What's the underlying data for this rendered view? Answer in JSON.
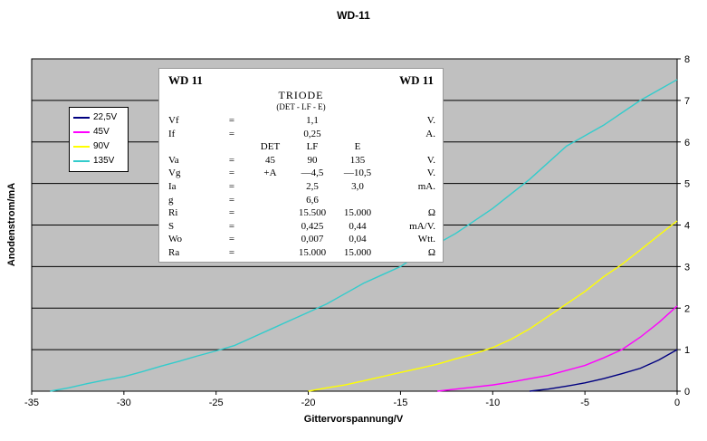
{
  "page": {
    "title": "WD-11"
  },
  "axes": {
    "x_label": "Gittervorspannung/V",
    "y_label": "Anodenstrom/mA",
    "x_ticks": [
      -35,
      -30,
      -25,
      -20,
      -15,
      -10,
      -5,
      0
    ],
    "y_ticks": [
      0,
      1,
      2,
      3,
      4,
      5,
      6,
      7,
      8
    ]
  },
  "colors": {
    "plot_bg": "#c0c0c0",
    "grid": "#000000",
    "axis": "#000000"
  },
  "legend": {
    "items": [
      {
        "label": "22,5V",
        "color": "#000080"
      },
      {
        "label": "45V",
        "color": "#ff00ff"
      },
      {
        "label": "90V",
        "color": "#ffff00"
      },
      {
        "label": "135V",
        "color": "#33cccc"
      }
    ]
  },
  "chart_data": {
    "type": "line",
    "title": "WD-11",
    "xlabel": "Gittervorspannung/V",
    "ylabel": "Anodenstrom/mA",
    "xlim": [
      -35,
      0
    ],
    "ylim": [
      0,
      8
    ],
    "grid": "horizontal",
    "legend_position": "upper-left-inside",
    "series": [
      {
        "name": "22,5V",
        "color": "#000080",
        "points": [
          [
            -8,
            0
          ],
          [
            -7,
            0.05
          ],
          [
            -6,
            0.12
          ],
          [
            -5,
            0.2
          ],
          [
            -4,
            0.3
          ],
          [
            -3,
            0.42
          ],
          [
            -2,
            0.55
          ],
          [
            -1,
            0.75
          ],
          [
            0,
            1.0
          ]
        ]
      },
      {
        "name": "45V",
        "color": "#ff00ff",
        "points": [
          [
            -13,
            0
          ],
          [
            -12,
            0.05
          ],
          [
            -11,
            0.1
          ],
          [
            -10,
            0.15
          ],
          [
            -9,
            0.22
          ],
          [
            -8,
            0.3
          ],
          [
            -7,
            0.38
          ],
          [
            -6,
            0.5
          ],
          [
            -5,
            0.62
          ],
          [
            -4,
            0.8
          ],
          [
            -3,
            1.0
          ],
          [
            -2,
            1.3
          ],
          [
            -1,
            1.65
          ],
          [
            0,
            2.05
          ]
        ]
      },
      {
        "name": "90V",
        "color": "#ffff00",
        "points": [
          [
            -20,
            0
          ],
          [
            -19,
            0.08
          ],
          [
            -18,
            0.15
          ],
          [
            -17,
            0.25
          ],
          [
            -16,
            0.35
          ],
          [
            -15,
            0.45
          ],
          [
            -14,
            0.55
          ],
          [
            -13,
            0.65
          ],
          [
            -12,
            0.78
          ],
          [
            -11,
            0.9
          ],
          [
            -10,
            1.05
          ],
          [
            -9,
            1.25
          ],
          [
            -8,
            1.5
          ],
          [
            -7,
            1.8
          ],
          [
            -6,
            2.1
          ],
          [
            -5,
            2.4
          ],
          [
            -4,
            2.75
          ],
          [
            -3,
            3.05
          ],
          [
            -2,
            3.4
          ],
          [
            -1,
            3.75
          ],
          [
            0,
            4.1
          ]
        ]
      },
      {
        "name": "135V",
        "color": "#33cccc",
        "points": [
          [
            -34,
            0
          ],
          [
            -33,
            0.08
          ],
          [
            -32,
            0.18
          ],
          [
            -31,
            0.27
          ],
          [
            -30,
            0.35
          ],
          [
            -29,
            0.47
          ],
          [
            -28,
            0.6
          ],
          [
            -27,
            0.72
          ],
          [
            -26,
            0.85
          ],
          [
            -25,
            0.97
          ],
          [
            -24,
            1.1
          ],
          [
            -23,
            1.3
          ],
          [
            -22,
            1.5
          ],
          [
            -21,
            1.7
          ],
          [
            -20,
            1.9
          ],
          [
            -19.5,
            2.0
          ],
          [
            -19,
            2.1
          ],
          [
            -18,
            2.35
          ],
          [
            -17,
            2.6
          ],
          [
            -16,
            2.8
          ],
          [
            -15,
            3.0
          ],
          [
            -14,
            3.3
          ],
          [
            -13,
            3.55
          ],
          [
            -12,
            3.8
          ],
          [
            -11,
            4.1
          ],
          [
            -10,
            4.4
          ],
          [
            -9,
            4.75
          ],
          [
            -8,
            5.1
          ],
          [
            -7,
            5.5
          ],
          [
            -6,
            5.9
          ],
          [
            -5,
            6.15
          ],
          [
            -4,
            6.4
          ],
          [
            -3,
            6.7
          ],
          [
            -2,
            7.0
          ],
          [
            -1,
            7.25
          ],
          [
            0,
            7.5
          ]
        ]
      }
    ]
  },
  "datasheet": {
    "title_left": "WD 11",
    "title_right": "WD 11",
    "heading": "TRIODE",
    "subheading": "(DET - LF - E)",
    "rows": [
      {
        "name": "Vf",
        "eq": "=",
        "det": "",
        "lf": "1,1",
        "e": "",
        "unit": "V.",
        "header": false
      },
      {
        "name": "If",
        "eq": "=",
        "det": "",
        "lf": "0,25",
        "e": "",
        "unit": "A.",
        "header": false
      },
      {
        "name": "",
        "eq": "",
        "det": "DET",
        "lf": "LF",
        "e": "E",
        "unit": "",
        "header": true
      },
      {
        "name": "Va",
        "eq": "=",
        "det": "45",
        "lf": "90",
        "e": "135",
        "unit": "V.",
        "header": false
      },
      {
        "name": "Vg",
        "eq": "=",
        "det": "+A",
        "lf": "—4,5",
        "e": "—10,5",
        "unit": "V.",
        "header": false
      },
      {
        "name": "Ia",
        "eq": "=",
        "det": "",
        "lf": "2,5",
        "e": "3,0",
        "unit": "mA.",
        "header": false
      },
      {
        "name": "g",
        "eq": "=",
        "det": "",
        "lf": "6,6",
        "e": "",
        "unit": "",
        "header": false
      },
      {
        "name": "Ri",
        "eq": "=",
        "det": "",
        "lf": "15.500",
        "e": "15.000",
        "unit": "Ω",
        "header": false
      },
      {
        "name": "S",
        "eq": "=",
        "det": "",
        "lf": "0,425",
        "e": "0,44",
        "unit": "mA/V.",
        "header": false
      },
      {
        "name": "Wo",
        "eq": "=",
        "det": "",
        "lf": "0,007",
        "e": "0,04",
        "unit": "Wtt.",
        "header": false
      },
      {
        "name": "Ra",
        "eq": "=",
        "det": "",
        "lf": "15.000",
        "e": "15.000",
        "unit": "Ω",
        "header": false
      }
    ]
  }
}
